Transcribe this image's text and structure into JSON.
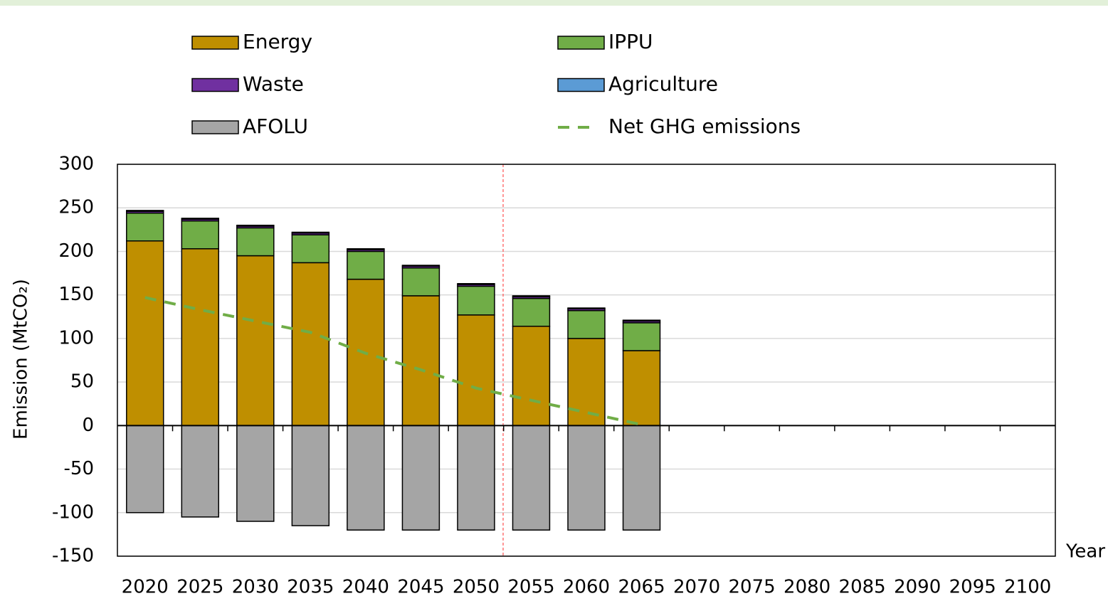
{
  "chart_data": {
    "type": "bar",
    "stacked": true,
    "y_label": "Emission (MtCO₂)",
    "x_label": "Year",
    "categories": [
      "2020",
      "2025",
      "2030",
      "2035",
      "2040",
      "2045",
      "2050",
      "2055",
      "2060",
      "2065",
      "2070",
      "2075",
      "2080",
      "2085",
      "2090",
      "2095",
      "2100"
    ],
    "series": [
      {
        "name": "Energy",
        "color": "#bf8f00",
        "values": [
          212,
          203,
          195,
          187,
          168,
          149,
          127,
          114,
          100,
          86,
          null,
          null,
          null,
          null,
          null,
          null,
          null
        ]
      },
      {
        "name": "IPPU",
        "color": "#70ad47",
        "values": [
          32,
          32,
          32,
          32,
          32,
          32,
          33,
          32,
          32,
          32,
          null,
          null,
          null,
          null,
          null,
          null,
          null
        ]
      },
      {
        "name": "Waste",
        "color": "#7030a0",
        "values": [
          2,
          2,
          2,
          2,
          2,
          2,
          2,
          2,
          2,
          2,
          null,
          null,
          null,
          null,
          null,
          null,
          null
        ]
      },
      {
        "name": "Agriculture",
        "color": "#5b9bd5",
        "values": [
          1,
          1,
          1,
          1,
          1,
          1,
          1,
          1,
          1,
          1,
          null,
          null,
          null,
          null,
          null,
          null,
          null
        ]
      },
      {
        "name": "AFOLU",
        "color": "#a5a5a5",
        "values": [
          -100,
          -105,
          -110,
          -115,
          -120,
          -120,
          -120,
          -120,
          -120,
          -120,
          null,
          null,
          null,
          null,
          null,
          null,
          null
        ]
      },
      {
        "name": "Net GHG emissions",
        "color": "#70ad47",
        "type": "line",
        "dashed": true,
        "values": [
          147,
          133,
          120,
          107,
          83,
          64,
          43,
          29,
          15,
          1,
          null,
          null,
          null,
          null,
          null,
          null,
          null
        ]
      }
    ],
    "ylim": [
      -150,
      300
    ],
    "yticks": [
      -150,
      -100,
      -50,
      0,
      50,
      100,
      150,
      200,
      250,
      300
    ],
    "grid": true
  }
}
